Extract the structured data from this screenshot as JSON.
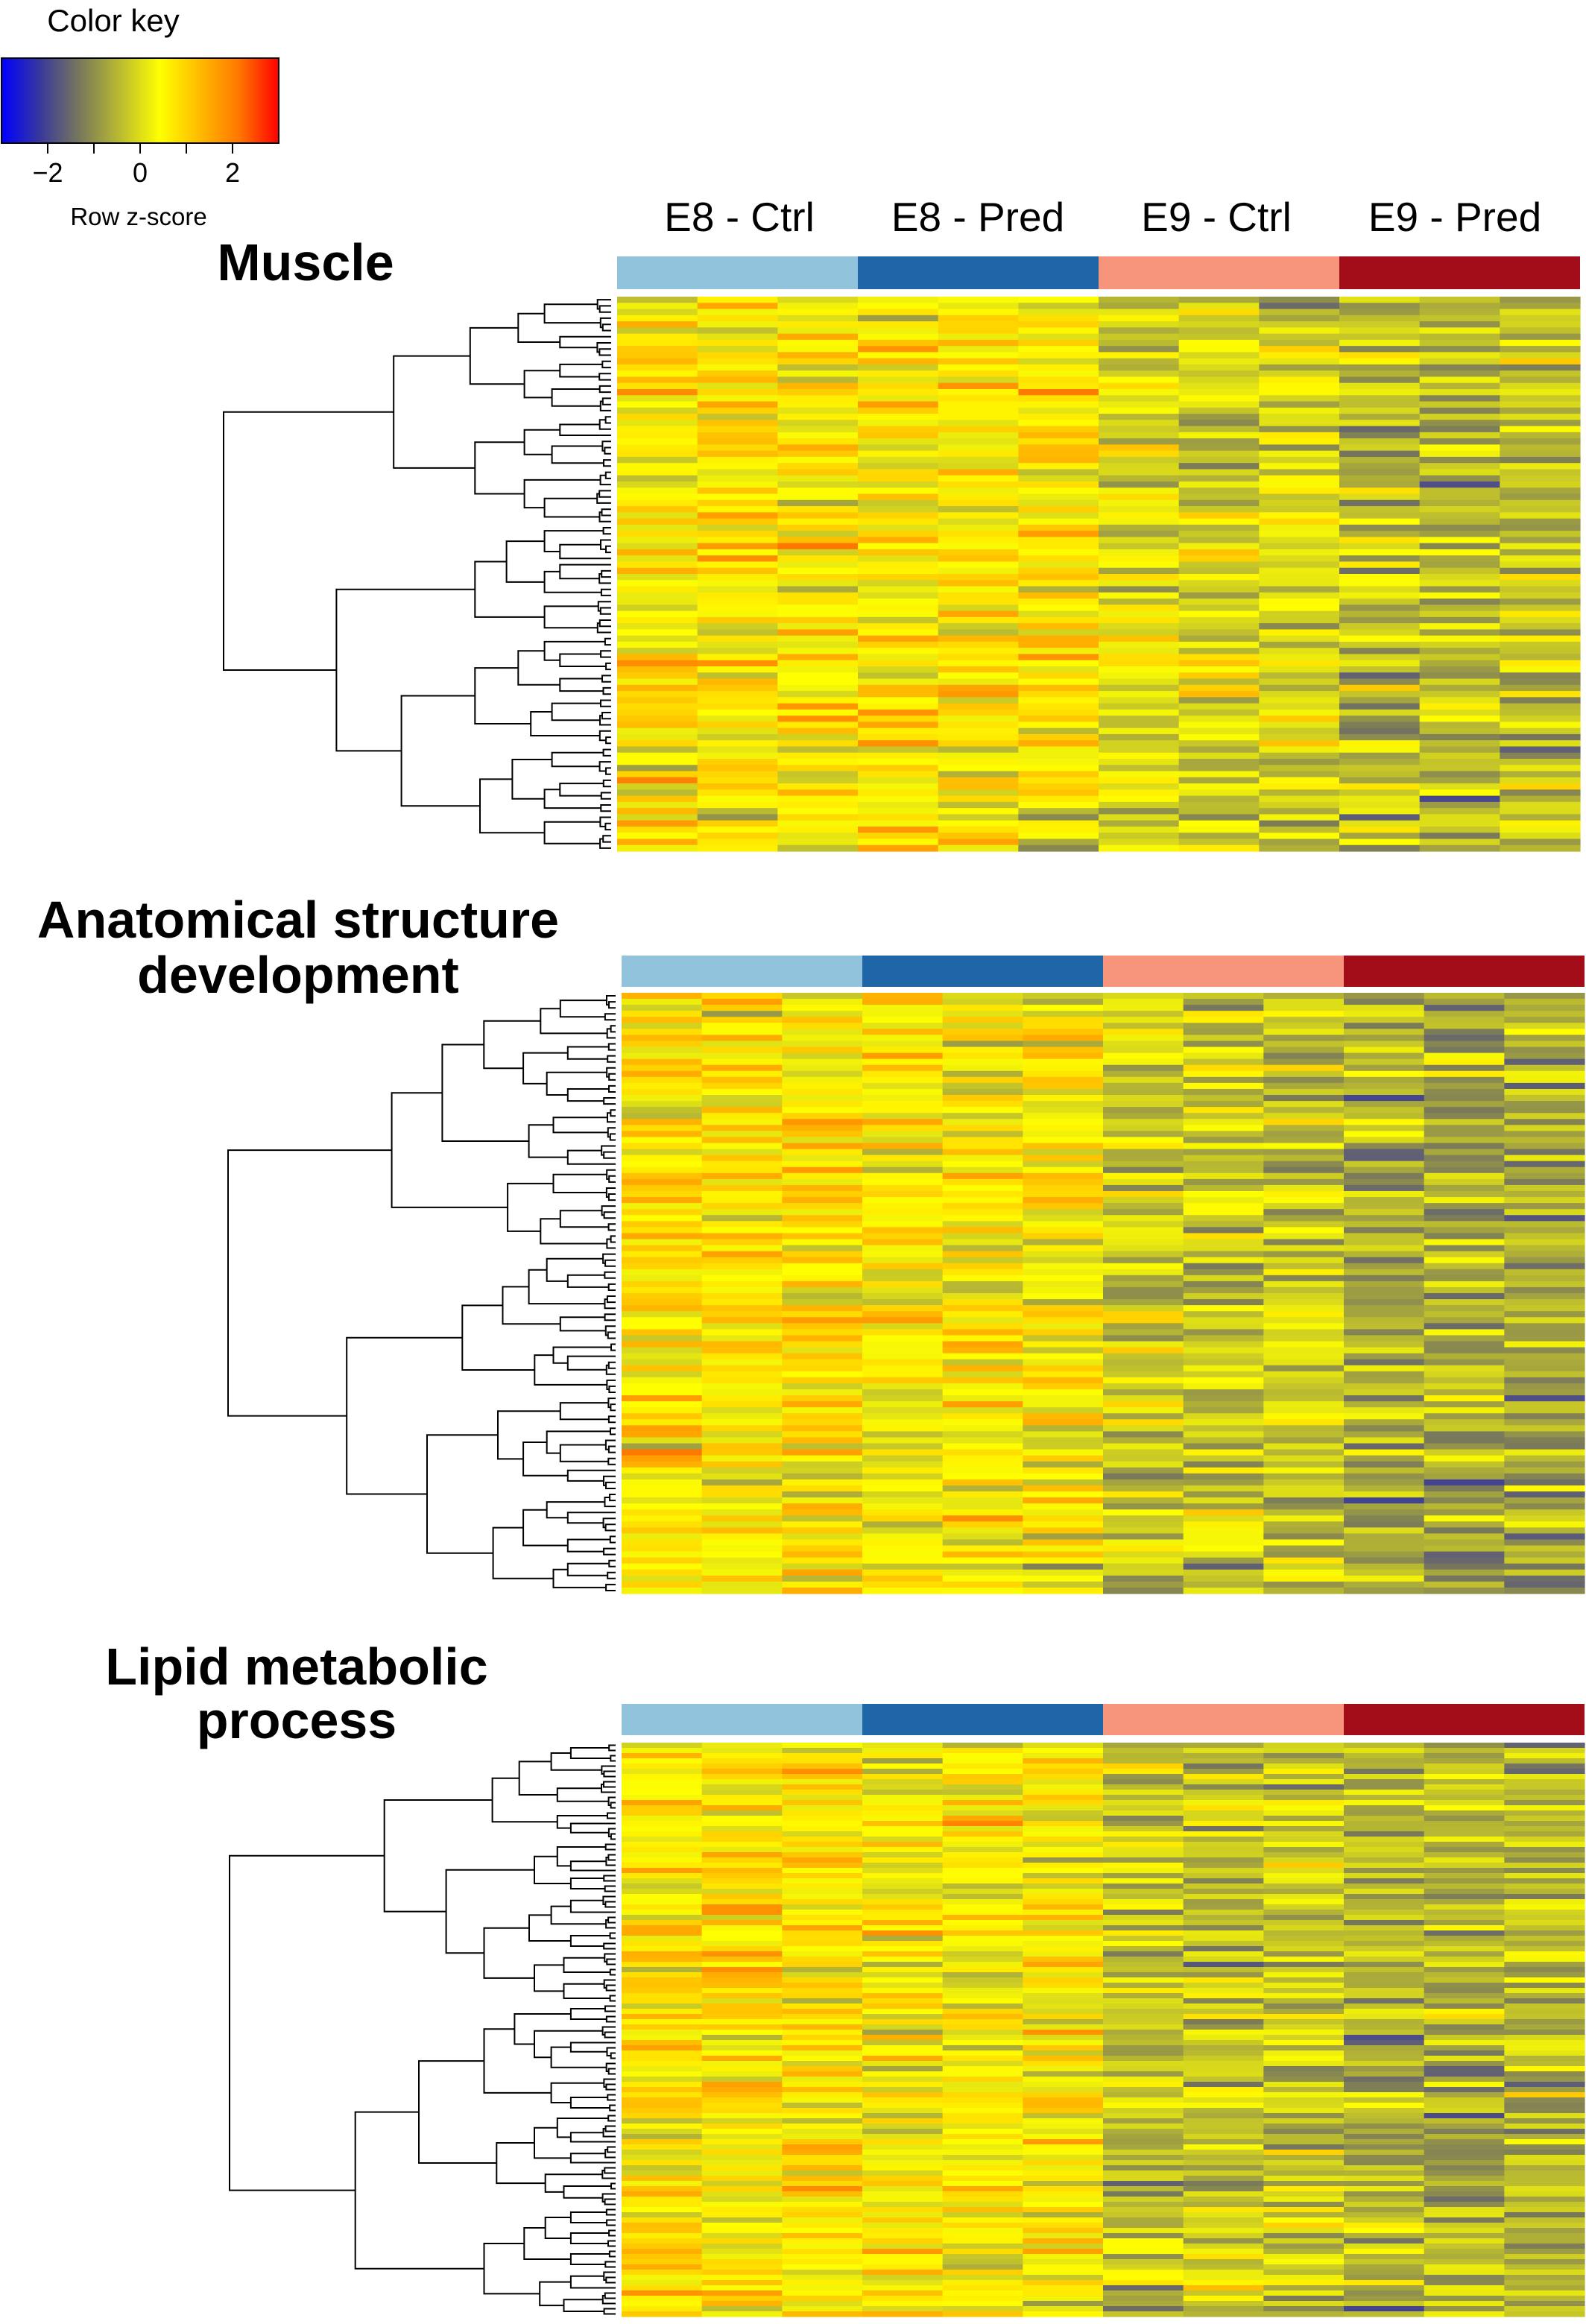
{
  "color_key": {
    "title": "Color key",
    "xlabel": "Row z-score",
    "ticks": [
      "−2",
      "0",
      "2"
    ],
    "tick_values": [
      -2,
      0,
      2
    ],
    "range": [
      -3,
      3
    ],
    "stops": [
      "#0000ff",
      "#3a3a9a",
      "#7a7a5a",
      "#bbbb30",
      "#ffff00",
      "#ffbb00",
      "#ff7700",
      "#ff0000"
    ]
  },
  "groups": [
    {
      "label": "E8 - Ctrl",
      "color": "#92c3dd"
    },
    {
      "label": "E8 - Pred",
      "color": "#1f66a9"
    },
    {
      "label": "E9 - Ctrl",
      "color": "#f6957b"
    },
    {
      "label": "E9 - Pred",
      "color": "#a20d19"
    }
  ],
  "panels": [
    {
      "title_lines": [
        "Muscle"
      ]
    },
    {
      "title_lines": [
        "Anatomical structure",
        "development"
      ]
    },
    {
      "title_lines": [
        "Lipid metabolic",
        "process"
      ]
    }
  ],
  "chart_data": [
    {
      "type": "heatmap",
      "title": "Muscle",
      "columns": [
        "E8 - Ctrl",
        "E8 - Ctrl",
        "E8 - Ctrl",
        "E8 - Pred",
        "E8 - Pred",
        "E8 - Pred",
        "E9 - Ctrl",
        "E9 - Ctrl",
        "E9 - Ctrl",
        "E9 - Pred",
        "E9 - Pred",
        "E9 - Pred"
      ],
      "row_count": 90,
      "column_group_means": [
        0.6,
        0.5,
        -0.1,
        -0.4
      ],
      "value_range": [
        -3,
        3
      ],
      "dendrogram": "rows"
    },
    {
      "type": "heatmap",
      "title": "Anatomical structure development",
      "columns": [
        "E8 - Ctrl",
        "E8 - Ctrl",
        "E8 - Ctrl",
        "E8 - Pred",
        "E8 - Pred",
        "E8 - Pred",
        "E9 - Ctrl",
        "E9 - Ctrl",
        "E9 - Ctrl",
        "E9 - Pred",
        "E9 - Pred",
        "E9 - Pred"
      ],
      "row_count": 100,
      "column_group_means": [
        0.7,
        0.5,
        -0.2,
        -0.6
      ],
      "value_range": [
        -3,
        3
      ],
      "dendrogram": "rows"
    },
    {
      "type": "heatmap",
      "title": "Lipid metabolic process",
      "columns": [
        "E8 - Ctrl",
        "E8 - Ctrl",
        "E8 - Ctrl",
        "E8 - Pred",
        "E8 - Pred",
        "E8 - Pred",
        "E9 - Ctrl",
        "E9 - Ctrl",
        "E9 - Ctrl",
        "E9 - Pred",
        "E9 - Pred",
        "E9 - Pred"
      ],
      "row_count": 110,
      "column_group_means": [
        0.7,
        0.5,
        -0.2,
        -0.5
      ],
      "value_range": [
        -3,
        3
      ],
      "dendrogram": "rows"
    }
  ]
}
